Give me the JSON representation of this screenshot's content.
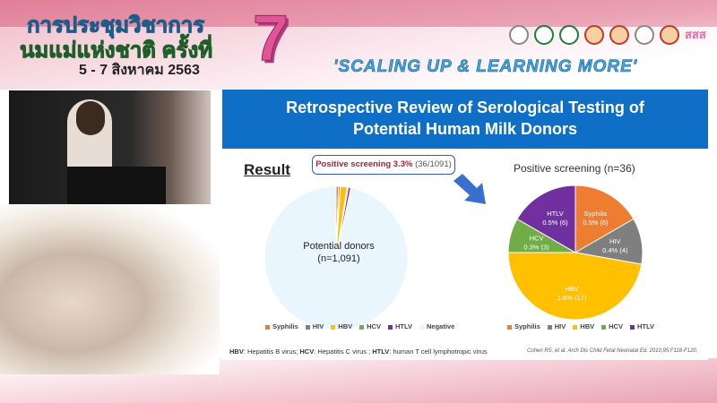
{
  "conference": {
    "title_line1": "การประชุมวิชาการ",
    "title_line2": "นมแม่แห่งชาติ ครั้งที่",
    "edition": "7",
    "date": "5 - 7 สิงหาคม 2563",
    "slogan": "'SCALING UP & LEARNING MORE'",
    "logo_text": "สสส"
  },
  "slide": {
    "title_line1": "Retrospective Review of Serological Testing of",
    "title_line2": "Potential Human Milk Donors",
    "result_heading": "Result",
    "callout_bold": "Positive screening 3.3%",
    "callout_rest": "(36/1091)",
    "donors_label_line1": "Potential donors",
    "donors_label_line2": "(n=1,091)",
    "footnote": {
      "hbv_abbr": "HBV",
      "hbv_text": ": Hepatitis B virus; ",
      "hcv_abbr": "HCV",
      "hcv_text": ": Hepatitis C virus ; ",
      "htlv_abbr": "HTLV",
      "htlv_text": ": human T cell lymphotropic virus"
    },
    "citation": "Cohen RS, et al. Arch Dis Child Fetal Neonatal Ed. 2010;95:F118-F120."
  },
  "chart_data": [
    {
      "type": "pie",
      "categories": [
        "Syphilis",
        "HIV",
        "HBV",
        "HCV",
        "HTLV",
        "Negative"
      ],
      "values": [
        6,
        4,
        17,
        3,
        6,
        1055
      ],
      "colors": [
        "#ed7d31",
        "#7f7f7f",
        "#ffc000",
        "#70ad47",
        "#7030a0",
        "#eaf6fd"
      ],
      "legend": "bottom"
    },
    {
      "type": "pie",
      "title": "Positive screening (n=36)",
      "categories": [
        "Syphilis",
        "HIV",
        "HBV",
        "HCV",
        "HTLV"
      ],
      "values": [
        6,
        4,
        17,
        3,
        6
      ],
      "data_labels": [
        [
          "Syphilis",
          "0.5% (6)"
        ],
        [
          "HIV",
          "0.4% (4)"
        ],
        [
          "HBV",
          "1.6% (17)"
        ],
        [
          "HCV",
          "0.3% (3)"
        ],
        [
          "HTLV",
          "0.5% (6)"
        ]
      ],
      "colors": [
        "#ed7d31",
        "#7f7f7f",
        "#ffc000",
        "#70ad47",
        "#7030a0"
      ],
      "legend": "bottom"
    }
  ]
}
